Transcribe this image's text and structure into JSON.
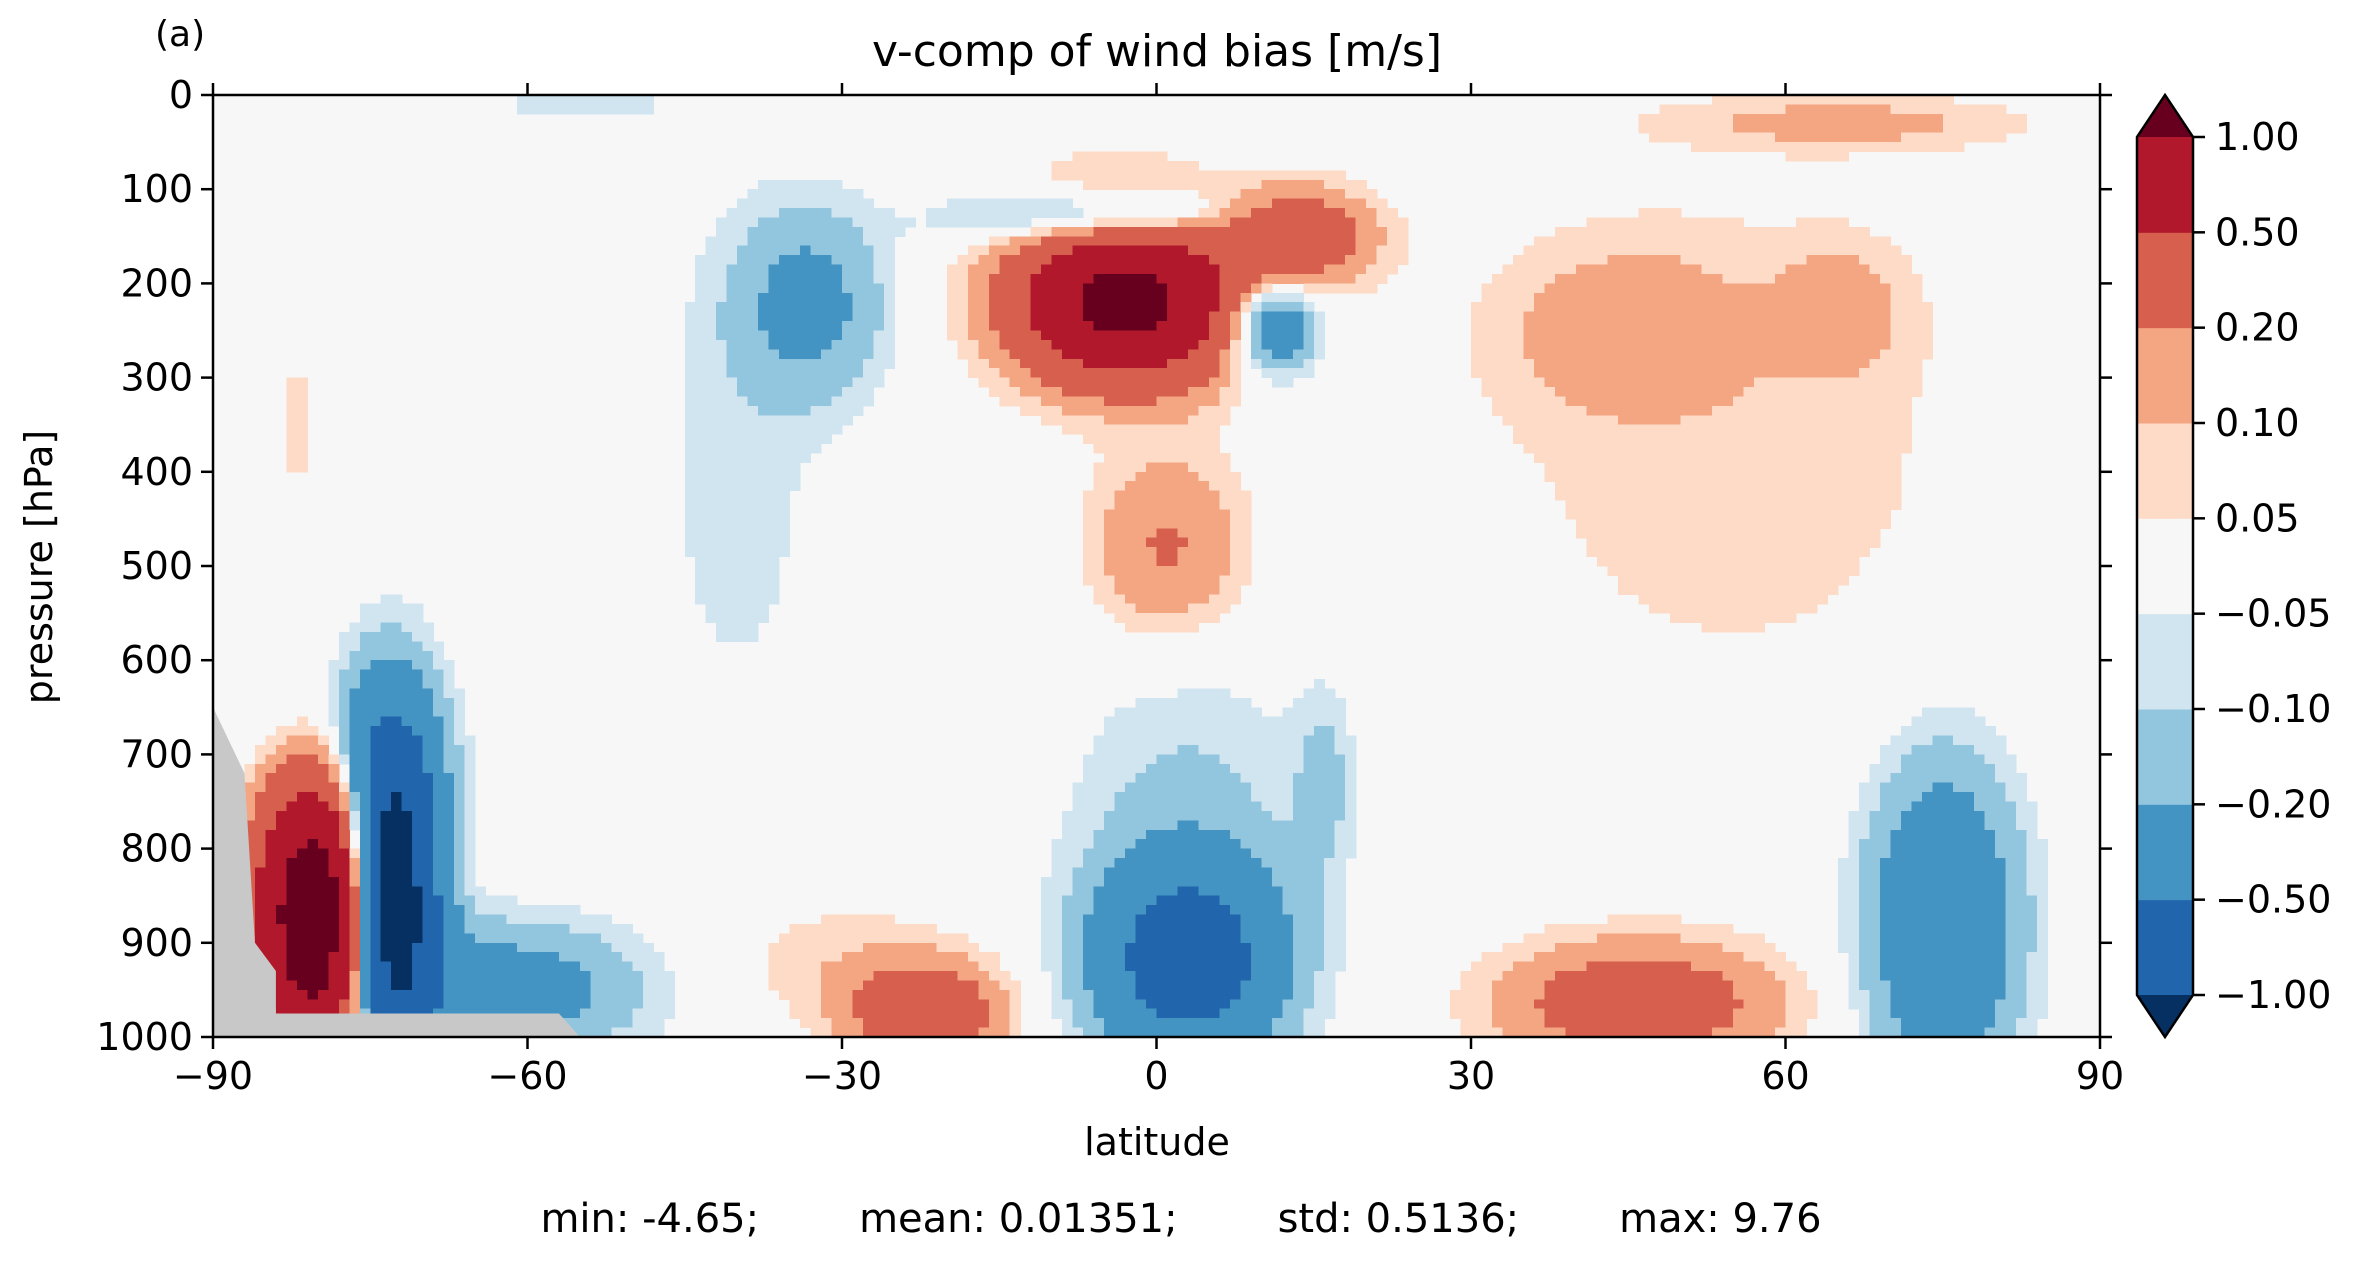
{
  "chart_data": {
    "type": "heatmap",
    "panel_label": "(a)",
    "title": "v-comp of wind bias [m/s]",
    "xlabel": "latitude",
    "ylabel": "pressure [hPa]",
    "xlim": [
      -90,
      90
    ],
    "ylim": [
      1000,
      0
    ],
    "xticks": [
      -90,
      -60,
      -30,
      0,
      30,
      60,
      90
    ],
    "xtick_labels": [
      "−90",
      "−60",
      "−30",
      "0",
      "30",
      "60",
      "90"
    ],
    "yticks": [
      0,
      100,
      200,
      300,
      400,
      500,
      600,
      700,
      800,
      900,
      1000
    ],
    "ytick_labels": [
      "0",
      "100",
      "200",
      "300",
      "400",
      "500",
      "600",
      "700",
      "800",
      "900",
      "1000"
    ],
    "colorbar": {
      "levels": [
        -1.0,
        -0.5,
        -0.2,
        -0.1,
        -0.05,
        0.05,
        0.1,
        0.2,
        0.5,
        1.0
      ],
      "labels": [
        "−1.00",
        "−0.50",
        "−0.20",
        "−0.10",
        "−0.05",
        "0.05",
        "0.10",
        "0.20",
        "0.50",
        "1.00"
      ],
      "colors": [
        "#053061",
        "#2166ac",
        "#4393c3",
        "#92c5de",
        "#d1e5f0",
        "#f7f7f7",
        "#fddbc7",
        "#f4a582",
        "#d6604d",
        "#b2182b",
        "#67001f"
      ],
      "extend": "both"
    },
    "masked_color": "#c8c8c8",
    "features": [
      {
        "lat": -3,
        "p": 220,
        "value": 1.2,
        "spread_lat": 7,
        "spread_p": 55
      },
      {
        "lat": 13,
        "p": 150,
        "value": 0.4,
        "spread_lat": 5,
        "spread_p": 35
      },
      {
        "lat": 11,
        "p": 245,
        "value": -0.45,
        "spread_lat": 3,
        "spread_p": 35
      },
      {
        "lat": -5,
        "p": 130,
        "value": -0.3,
        "spread_lat": 9,
        "spread_p": 20
      },
      {
        "lat": -33,
        "p": 220,
        "value": -0.25,
        "spread_lat": 5,
        "spread_p": 70
      },
      {
        "lat": -40,
        "p": 420,
        "value": -0.07,
        "spread_lat": 6,
        "spread_p": 200
      },
      {
        "lat": 1,
        "p": 480,
        "value": 0.22,
        "spread_lat": 5,
        "spread_p": 70
      },
      {
        "lat": 45,
        "p": 250,
        "value": 0.14,
        "spread_lat": 8,
        "spread_p": 60
      },
      {
        "lat": 65,
        "p": 230,
        "value": 0.14,
        "spread_lat": 4,
        "spread_p": 45
      },
      {
        "lat": 55,
        "p": 380,
        "value": 0.07,
        "spread_lat": 20,
        "spread_p": 230
      },
      {
        "lat": 3,
        "p": 920,
        "value": -0.7,
        "spread_lat": 6,
        "spread_p": 70
      },
      {
        "lat": 3,
        "p": 780,
        "value": -0.12,
        "spread_lat": 8,
        "spread_p": 140
      },
      {
        "lat": 16,
        "p": 730,
        "value": -0.12,
        "spread_lat": 2,
        "spread_p": 70
      },
      {
        "lat": -22,
        "p": 975,
        "value": 0.4,
        "spread_lat": 5,
        "spread_p": 35
      },
      {
        "lat": -30,
        "p": 920,
        "value": 0.08,
        "spread_lat": 9,
        "spread_p": 50
      },
      {
        "lat": 46,
        "p": 965,
        "value": 0.35,
        "spread_lat": 9,
        "spread_p": 45
      },
      {
        "lat": 75,
        "p": 880,
        "value": -0.45,
        "spread_lat": 5,
        "spread_p": 120
      },
      {
        "lat": -73,
        "p": 850,
        "value": -1.5,
        "spread_lat": 3,
        "spread_p": 120
      },
      {
        "lat": -80,
        "p": 870,
        "value": 1.5,
        "spread_lat": 4,
        "spread_p": 110
      },
      {
        "lat": -78,
        "p": 700,
        "value": -0.25,
        "spread_lat": 6,
        "spread_p": 70
      },
      {
        "lat": -62,
        "p": 950,
        "value": -0.3,
        "spread_lat": 9,
        "spread_p": 50
      },
      {
        "lat": -4,
        "p": 80,
        "value": 0.06,
        "spread_lat": 6,
        "spread_p": 20
      },
      {
        "lat": 66,
        "p": 30,
        "value": 0.12,
        "spread_lat": 12,
        "spread_p": 20
      },
      {
        "lat": -55,
        "p": 10,
        "value": -0.1,
        "spread_lat": 6,
        "spread_p": 10
      },
      {
        "lat": -82,
        "p": 350,
        "value": 0.06,
        "spread_lat": 2,
        "spread_p": 90
      }
    ]
  },
  "stats": {
    "min": "min: -4.65;",
    "mean": "mean: 0.01351;",
    "std": "std: 0.5136;",
    "max": "max: 9.76"
  }
}
